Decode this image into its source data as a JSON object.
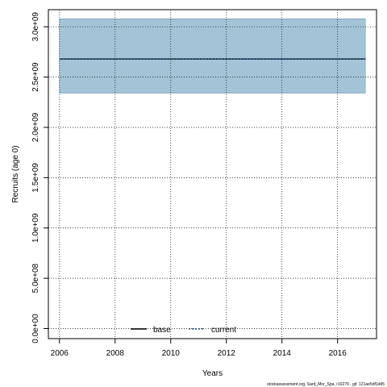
{
  "chart_data": {
    "type": "area",
    "xlabel": "Years",
    "ylabel": "Recruits (age 0)",
    "xlim": [
      2005.6,
      2017.4
    ],
    "ylim": [
      -100000000,
      3170000000
    ],
    "x_ticks": [
      2006,
      2008,
      2010,
      2012,
      2014,
      2016
    ],
    "x_tick_labels": [
      "2006",
      "2008",
      "2010",
      "2012",
      "2014",
      "2016"
    ],
    "y_ticks": [
      0,
      500000000,
      1000000000,
      1500000000,
      2000000000,
      2500000000,
      3000000000
    ],
    "y_tick_labels": [
      "0.0e+00",
      "5.0e+08",
      "1.0e+09",
      "1.5e+09",
      "2.0e+09",
      "2.5e+09",
      "3.0e+09"
    ],
    "grid": true,
    "band": {
      "x": [
        2006,
        2017
      ],
      "lower": 2340000000,
      "upper": 3080000000,
      "color": "#a3c4d6"
    },
    "series": [
      {
        "name": "base",
        "x": [
          2006,
          2017
        ],
        "values": [
          2680000000,
          2680000000
        ],
        "color": "#000000",
        "style": "solid"
      },
      {
        "name": "current",
        "x": [
          2006,
          2017
        ],
        "values": [
          2680000000,
          2680000000
        ],
        "color": "#1f4e8c",
        "style": "dashed"
      }
    ],
    "legend_placement": "bottom-center"
  },
  "footer": "stockassessment.org, Sard_Mor_Spa, r10279 , git: 121ae5df1d45"
}
